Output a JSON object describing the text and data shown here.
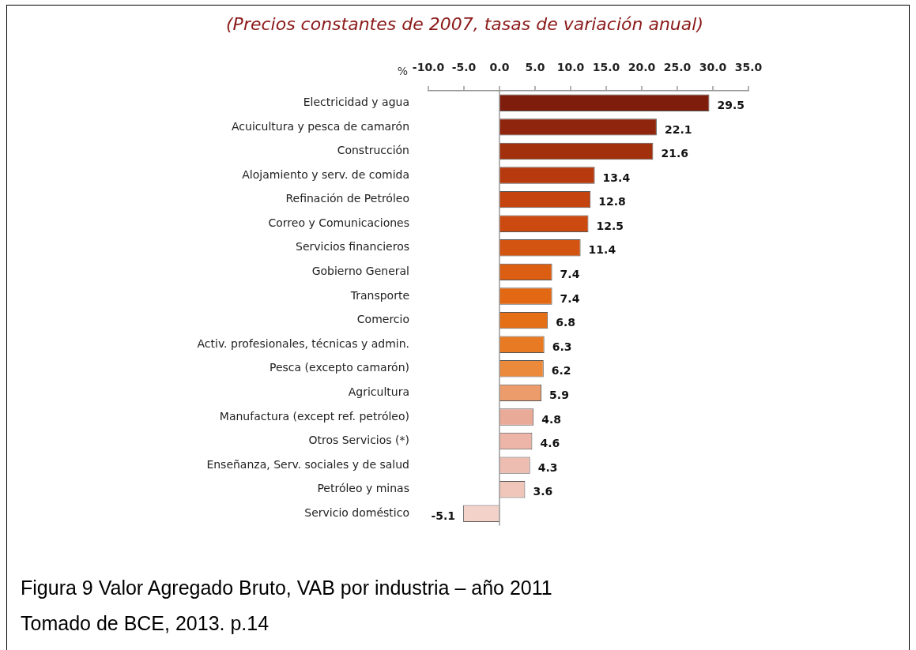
{
  "chart_data": {
    "type": "bar",
    "orientation": "horizontal",
    "title": "(Precios constantes de 2007, tasas de variación anual)",
    "xlabel": "%",
    "categories": [
      "Electricidad y agua",
      "Acuicultura y pesca de camarón",
      "Construcción",
      "Alojamiento y serv. de comida",
      "Refinación de Petróleo",
      "Correo y Comunicaciones",
      "Servicios financieros",
      "Gobierno General",
      "Transporte",
      "Comercio",
      "Activ. profesionales, técnicas y admin.",
      "Pesca (excepto camarón)",
      "Agricultura",
      "Manufactura (except ref. petróleo)",
      "Otros Servicios (*)",
      "Enseñanza, Serv. sociales y de salud",
      "Petróleo y minas",
      "Servicio doméstico"
    ],
    "values": [
      29.5,
      22.1,
      21.6,
      13.4,
      12.8,
      12.5,
      11.4,
      7.4,
      7.4,
      6.8,
      6.3,
      6.2,
      5.9,
      4.8,
      4.6,
      4.3,
      3.6,
      -5.1
    ],
    "colors": [
      "#7e1d0c",
      "#8f250c",
      "#a3300d",
      "#b63a0e",
      "#c4430f",
      "#cc4a10",
      "#d35311",
      "#dc5e12",
      "#e26814",
      "#e56f16",
      "#e77a22",
      "#eb8a3a",
      "#ec9c6a",
      "#eaaa98",
      "#ecb5a8",
      "#eebdb2",
      "#f0c6bb",
      "#f3d2c9"
    ],
    "xlim": [
      -10,
      35
    ],
    "xticks": [
      {
        "value": -10,
        "label": "-10.0"
      },
      {
        "value": -5,
        "label": "-5.0"
      },
      {
        "value": 0,
        "label": "0.0"
      },
      {
        "value": 5,
        "label": "5.0"
      },
      {
        "value": 10,
        "label": "10.0"
      },
      {
        "value": 15,
        "label": "15.0"
      },
      {
        "value": 20,
        "label": "20.0"
      },
      {
        "value": 25,
        "label": "25.0"
      },
      {
        "value": 30,
        "label": "30.0"
      },
      {
        "value": 35,
        "label": "35.0"
      }
    ],
    "ref_lines": [
      {
        "axis": "x",
        "value": 0,
        "color": "#999999"
      }
    ],
    "data_labels": true,
    "grid": false,
    "legend": false,
    "annotations": [
      "Figura 9 Valor Agregado Bruto, VAB por industria – año 2011",
      "Tomado de BCE, 2013. p.14"
    ]
  }
}
